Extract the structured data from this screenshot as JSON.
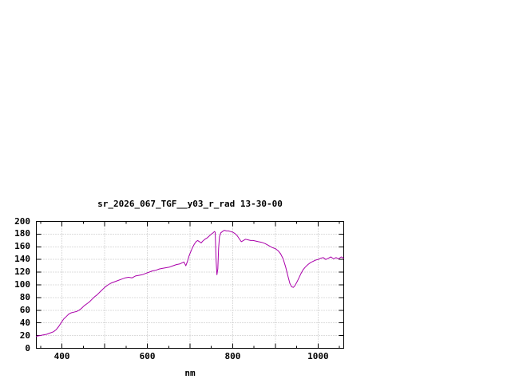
{
  "page": {
    "background": "#ffffff"
  },
  "chart_data": {
    "type": "line",
    "title": "sr_2026_067_TGF__y03_r_rad 13-30-00",
    "xlabel": "nm",
    "ylabel": "",
    "xlim": [
      340,
      1060
    ],
    "ylim": [
      0,
      200
    ],
    "xticks_labeled": [
      400,
      600,
      800,
      1000
    ],
    "xticks_grid": [
      400,
      500,
      600,
      700,
      800,
      900,
      1000
    ],
    "xticks_minor": [
      350,
      450,
      550,
      650,
      750,
      850,
      950,
      1050
    ],
    "yticks": [
      0,
      20,
      40,
      60,
      80,
      100,
      120,
      140,
      160,
      180,
      200
    ],
    "grid": true,
    "legend": "none",
    "line_color": "#aa00aa",
    "grid_color": "#b9b9b9",
    "axis_color": "#000000",
    "series": [
      {
        "name": "sr_2026_067_TGF__y03_r_rad",
        "x": [
          340,
          348,
          356,
          364,
          372,
          380,
          386,
          392,
          398,
          404,
          410,
          416,
          422,
          428,
          434,
          440,
          446,
          452,
          458,
          464,
          470,
          476,
          482,
          488,
          494,
          500,
          508,
          516,
          524,
          532,
          540,
          548,
          556,
          564,
          572,
          580,
          588,
          596,
          604,
          612,
          620,
          628,
          636,
          644,
          652,
          660,
          668,
          676,
          682,
          686,
          690,
          694,
          698,
          702,
          706,
          710,
          714,
          718,
          722,
          726,
          730,
          735,
          740,
          745,
          750,
          754,
          757,
          759,
          761,
          763,
          765,
          767,
          769,
          772,
          776,
          780,
          785,
          790,
          795,
          800,
          805,
          810,
          815,
          820,
          825,
          830,
          836,
          842,
          848,
          854,
          860,
          868,
          876,
          884,
          892,
          900,
          906,
          912,
          918,
          924,
          930,
          934,
          938,
          942,
          946,
          950,
          955,
          960,
          965,
          970,
          976,
          982,
          988,
          994,
          1000,
          1006,
          1012,
          1018,
          1024,
          1030,
          1036,
          1042,
          1048,
          1054,
          1060
        ],
        "y": [
          19,
          20,
          21,
          22,
          24,
          26,
          29,
          34,
          40,
          46,
          50,
          54,
          56,
          57,
          58,
          60,
          63,
          67,
          70,
          73,
          77,
          81,
          84,
          88,
          92,
          96,
          100,
          103,
          105,
          107,
          109,
          111,
          112,
          111,
          114,
          115,
          116,
          118,
          120,
          122,
          123,
          125,
          126,
          127,
          128,
          130,
          132,
          133,
          135,
          136,
          130,
          137,
          146,
          153,
          159,
          164,
          168,
          170,
          168,
          166,
          169,
          172,
          174,
          177,
          180,
          182,
          184,
          183,
          140,
          116,
          125,
          158,
          176,
          182,
          184,
          186,
          185,
          185,
          184,
          183,
          181,
          178,
          173,
          168,
          170,
          172,
          171,
          170,
          170,
          169,
          168,
          167,
          165,
          162,
          159,
          157,
          154,
          149,
          141,
          128,
          112,
          102,
          97,
          96,
          99,
          104,
          111,
          118,
          124,
          128,
          132,
          135,
          137,
          139,
          140,
          142,
          143,
          140,
          142,
          144,
          141,
          143,
          141,
          144,
          142
        ]
      }
    ]
  }
}
